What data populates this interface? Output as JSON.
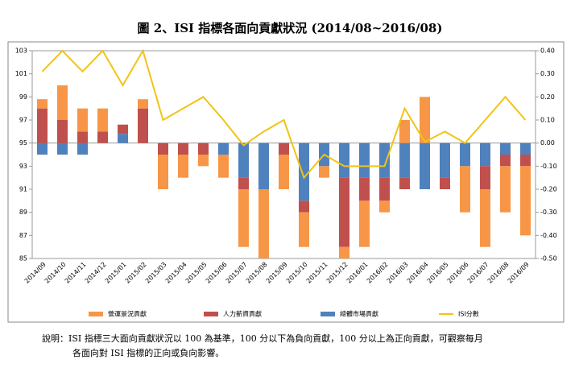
{
  "title": "圖 2、ISI 指標各面向貢獻狀況 (2014/08~2016/08)",
  "note": [
    "說明：ISI 指標三大面向貢獻狀況以 100 為基準，100 分以下為負向貢獻，100 分以上為正向貢獻，可觀察每月",
    "各面向對 ISI 指標的正向或負向影響。"
  ],
  "chart_data": {
    "type": "bar-line",
    "categories": [
      "2014/09",
      "2014/10",
      "2014/11",
      "2014/12",
      "2015/01",
      "2015/02",
      "2015/03",
      "2015/04",
      "2015/05",
      "2015/06",
      "2015/07",
      "2015/08",
      "2015/09",
      "2015/10",
      "2015/11",
      "2015/12",
      "2016/01",
      "2016/02",
      "2016/03",
      "2016/04",
      "2016/05",
      "2016/06",
      "2016/07",
      "2016/08",
      "2016/09"
    ],
    "series": [
      {
        "name": "營運景況貢獻",
        "color": "#f79646",
        "axis": "y2",
        "values": [
          0.04,
          0.15,
          0.1,
          0.1,
          0,
          0.04,
          -0.15,
          -0.1,
          -0.05,
          -0.1,
          -0.25,
          -0.3,
          -0.15,
          -0.15,
          -0.05,
          -0.05,
          -0.2,
          -0.05,
          0.1,
          0.2,
          0,
          -0.2,
          -0.25,
          -0.2,
          -0.3
        ]
      },
      {
        "name": "人力薪資貢獻",
        "color": "#c0504d",
        "axis": "y2",
        "values": [
          0.15,
          0.1,
          0.05,
          0.05,
          0.04,
          0.15,
          -0.05,
          -0.05,
          -0.05,
          0,
          -0.05,
          0,
          -0.05,
          -0.05,
          0,
          -0.3,
          -0.1,
          -0.1,
          -0.05,
          0,
          -0.05,
          0,
          -0.1,
          -0.05,
          -0.05
        ]
      },
      {
        "name": "總體市場貢獻",
        "color": "#4f81bd",
        "axis": "y2",
        "values": [
          -0.05,
          -0.05,
          -0.05,
          0,
          0.04,
          0,
          0,
          0,
          0,
          -0.05,
          -0.15,
          -0.2,
          0,
          -0.25,
          -0.1,
          -0.15,
          -0.15,
          -0.15,
          -0.15,
          -0.2,
          -0.15,
          -0.1,
          -0.1,
          -0.05,
          -0.05
        ]
      },
      {
        "name": "ISI分數",
        "color": "#f2c314",
        "type": "line",
        "values": [
          101.2,
          103,
          101.2,
          103,
          100,
          103,
          97,
          98,
          99,
          97,
          94.8,
          96,
          97,
          92,
          94,
          93,
          93,
          93,
          98,
          95.1,
          96,
          95,
          97,
          99,
          97
        ]
      }
    ],
    "ylim": [
      85,
      103
    ],
    "yticks": [
      85,
      87,
      89,
      91,
      93,
      95,
      97,
      99,
      101,
      103
    ],
    "y2lim": [
      -0.5,
      0.4
    ],
    "y2ticks": [
      {
        "value": -0.5,
        "label": "-0.50"
      },
      {
        "value": -0.4,
        "label": "-0.40"
      },
      {
        "value": -0.3,
        "label": "-0.30"
      },
      {
        "value": -0.2,
        "label": "-0.20"
      },
      {
        "value": -0.1,
        "label": "-0.10"
      },
      {
        "value": 0,
        "label": "0.00"
      },
      {
        "value": 0.1,
        "label": "0.10"
      },
      {
        "value": 0.2,
        "label": "0.20"
      },
      {
        "value": 0.3,
        "label": "0.30"
      },
      {
        "value": 0.4,
        "label": "0.40"
      }
    ]
  }
}
